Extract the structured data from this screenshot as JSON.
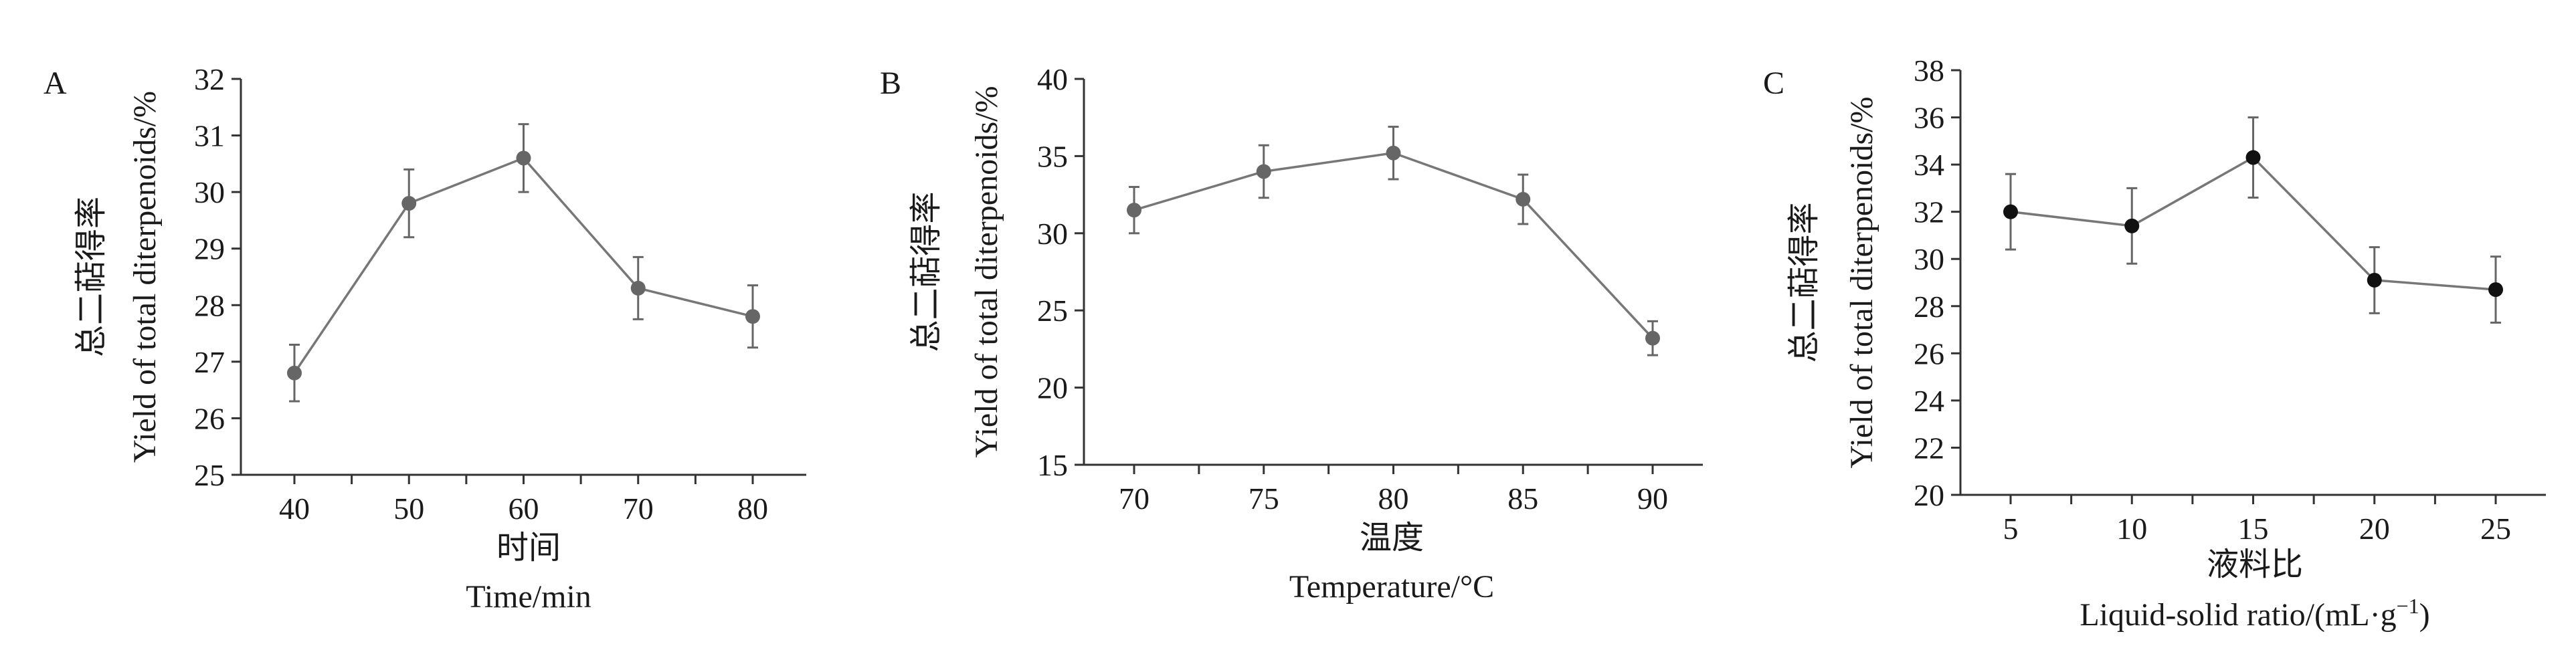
{
  "chart_data": [
    {
      "panel": "A",
      "type": "line",
      "title": "",
      "xlabel_cn": "时间",
      "xlabel_en": "Time/min",
      "ylabel_cn": "总二萜得率",
      "ylabel_en": "Yield of total diterpenoids/%",
      "x": [
        40,
        50,
        60,
        70,
        80
      ],
      "xticks": [
        "40",
        "50",
        "60",
        "70",
        "80"
      ],
      "ylim": [
        25,
        32
      ],
      "yticks": [
        "25",
        "26",
        "27",
        "28",
        "29",
        "30",
        "31",
        "32"
      ],
      "series": [
        {
          "name": "yield",
          "values": [
            26.8,
            29.8,
            30.6,
            28.3,
            27.8
          ],
          "errors": [
            0.5,
            0.6,
            0.6,
            0.55,
            0.55
          ]
        }
      ],
      "marker_color": "#666666",
      "line_color": "#777777"
    },
    {
      "panel": "B",
      "type": "line",
      "title": "",
      "xlabel_cn": "温度",
      "xlabel_en": "Temperature/°C",
      "ylabel_cn": "总二萜得率",
      "ylabel_en": "Yield of total diterpenoids/%",
      "x": [
        70,
        75,
        80,
        85,
        90
      ],
      "xticks": [
        "70",
        "75",
        "80",
        "85",
        "90"
      ],
      "ylim": [
        15,
        40
      ],
      "yticks": [
        "15",
        "20",
        "25",
        "30",
        "35",
        "40"
      ],
      "series": [
        {
          "name": "yield",
          "values": [
            31.5,
            34.0,
            35.2,
            32.2,
            23.2
          ],
          "errors": [
            1.5,
            1.7,
            1.7,
            1.6,
            1.1
          ]
        }
      ],
      "marker_color": "#666666",
      "line_color": "#777777"
    },
    {
      "panel": "C",
      "type": "line",
      "title": "",
      "xlabel_cn": "液料比",
      "xlabel_en": "Liquid-solid ratio/(mL·g",
      "xlabel_en_sup": "−1",
      "xlabel_en_tail": ")",
      "ylabel_cn": "总二萜得率",
      "ylabel_en": "Yield of total diterpenoids/%",
      "x": [
        5,
        10,
        15,
        20,
        25
      ],
      "xticks": [
        "5",
        "10",
        "15",
        "20",
        "25"
      ],
      "ylim": [
        20,
        38
      ],
      "yticks": [
        "20",
        "22",
        "24",
        "26",
        "28",
        "30",
        "32",
        "34",
        "36",
        "38"
      ],
      "series": [
        {
          "name": "yield",
          "values": [
            32.0,
            31.4,
            34.3,
            29.1,
            28.7
          ],
          "errors": [
            1.6,
            1.6,
            1.7,
            1.4,
            1.4
          ]
        }
      ],
      "marker_color": "#111111",
      "line_color": "#888888"
    }
  ]
}
